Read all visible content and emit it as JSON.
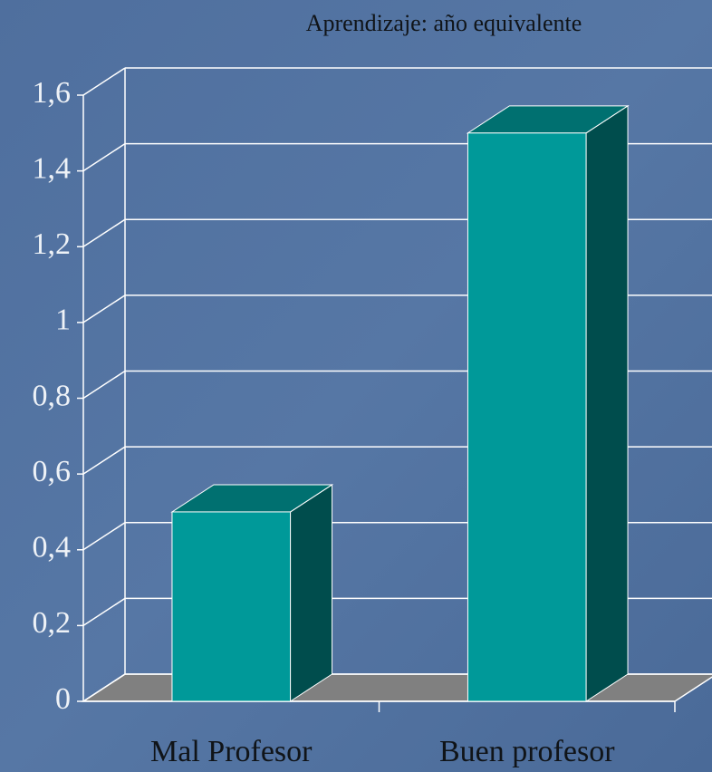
{
  "chart_data": {
    "type": "bar3d",
    "title": "Aprendizaje: año equivalente",
    "categories": [
      "Mal Profesor",
      "Buen profesor"
    ],
    "values": [
      0.5,
      1.5
    ],
    "color": "#009999",
    "ylim": [
      0,
      1.6
    ],
    "yticks": [
      0,
      {
        "value": 0.2,
        "label": "0,2"
      },
      {
        "value": 0.4,
        "label": "0,4"
      },
      {
        "value": 0.6,
        "label": "0,6"
      },
      {
        "value": 0.8,
        "label": "0,8"
      },
      1,
      {
        "value": 1.2,
        "label": "1,2"
      },
      {
        "value": 1.4,
        "label": "1,4"
      },
      {
        "value": 1.6,
        "label": "1,6"
      }
    ],
    "grid": true
  }
}
